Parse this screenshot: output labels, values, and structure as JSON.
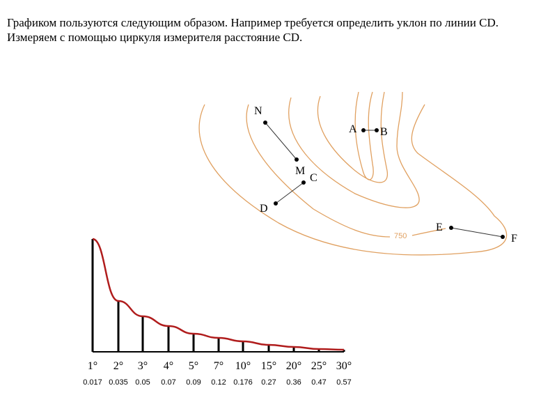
{
  "intro_text": "Графиком пользуются следующим образом. Например требуется определить уклон по линии CD.  Измеряем с помощью циркуля измерителя расстояние CD.",
  "map": {
    "contour_color": "#e0a060",
    "contour_label": "750",
    "points": {
      "N": "N",
      "M": "M",
      "C": "C",
      "D": "D",
      "A": "A",
      "B": "B",
      "E": "E",
      "F": "F"
    }
  },
  "chart_data": {
    "type": "line",
    "curve_color": "#b01c1c",
    "angles": [
      "1°",
      "2°",
      "3°",
      "4°",
      "5°",
      "7°",
      "10°",
      "15°",
      "20°",
      "25°",
      "30°"
    ],
    "values": [
      "0.017",
      "0.035",
      "0.05",
      "0.07",
      "0.09",
      "0.12",
      "0.176",
      "0.27",
      "0.36",
      "0.47",
      "0.57"
    ]
  }
}
